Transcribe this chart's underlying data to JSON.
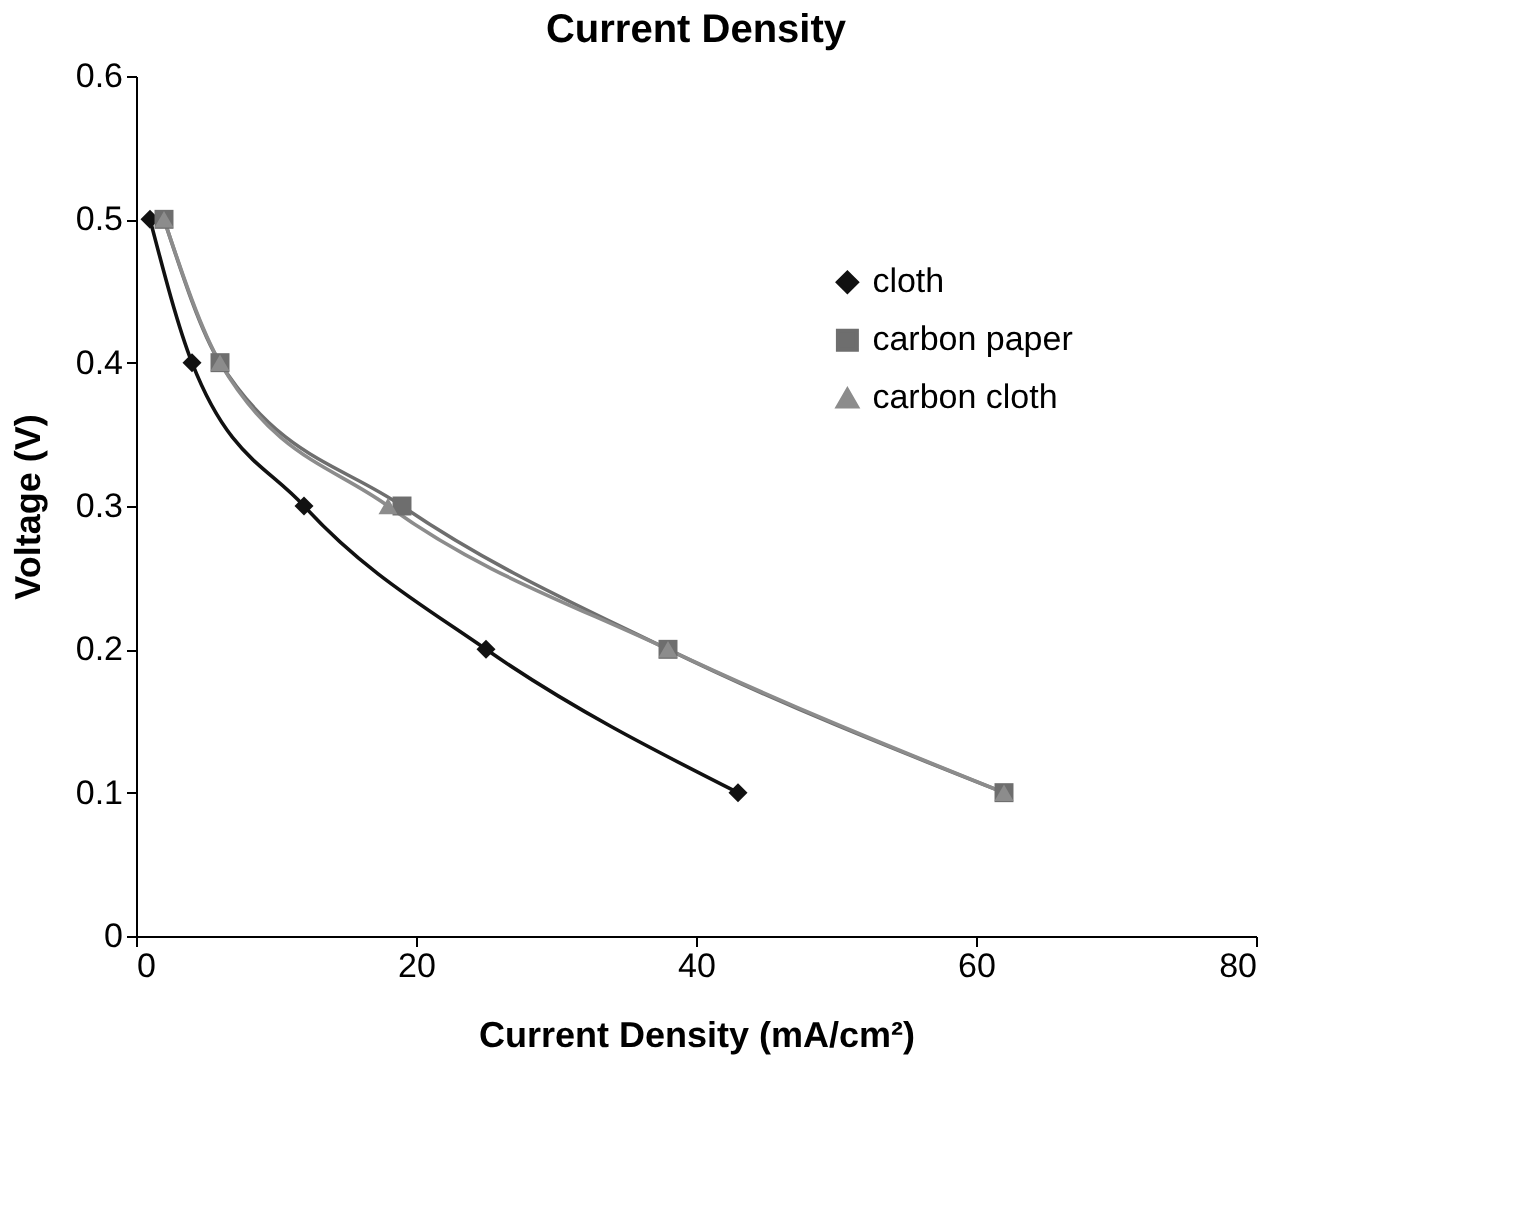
{
  "chart_data": {
    "type": "line",
    "title": "Current Density",
    "xlabel": "Current Density (mA/cm²)",
    "ylabel": "Voltage (V)",
    "xlim": [
      0,
      80
    ],
    "xticks": [
      0,
      20,
      40,
      60,
      80
    ],
    "ylim": [
      0,
      0.6
    ],
    "yticks": [
      0,
      0.1,
      0.2,
      0.3,
      0.4,
      0.5,
      0.6
    ],
    "grid": false,
    "legend": "right",
    "line_style": "solid",
    "series": [
      {
        "name": "cloth",
        "color": "#111111",
        "marker": "diamond",
        "x": [
          1,
          4,
          12,
          25,
          43
        ],
        "values": [
          0.5,
          0.4,
          0.3,
          0.2,
          0.1
        ]
      },
      {
        "name": "carbon paper",
        "color": "#6e6e6e",
        "marker": "square",
        "x": [
          2,
          6,
          19,
          38,
          62
        ],
        "values": [
          0.5,
          0.4,
          0.3,
          0.2,
          0.1
        ]
      },
      {
        "name": "carbon cloth",
        "color": "#8c8c8c",
        "marker": "triangle",
        "x": [
          2,
          6,
          18,
          38,
          62
        ],
        "values": [
          0.5,
          0.4,
          0.3,
          0.2,
          0.1
        ]
      }
    ]
  }
}
